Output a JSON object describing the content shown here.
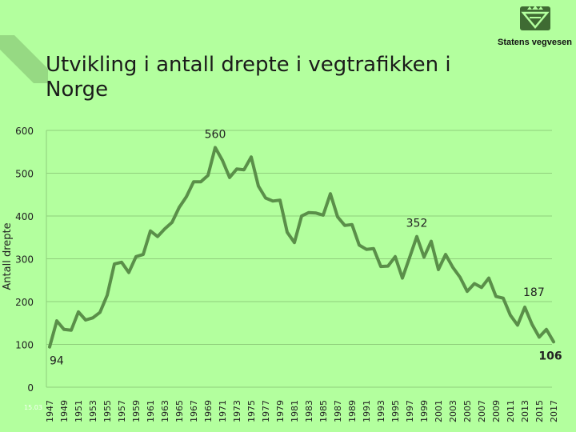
{
  "slide": {
    "title": "Utvikling i antall drepte i vegtrafikken i Norge",
    "logo_text": "Statens vegvesen",
    "footer_date": "15.03"
  },
  "colors": {
    "background": "#b3ff9e",
    "line": "#5a8f49",
    "grid": "#8fcf7c",
    "logo_fill": "#5a8f49"
  },
  "chart_data": {
    "type": "line",
    "title": "",
    "xlabel": "",
    "ylabel": "Antall drepte",
    "xlim": [
      1947,
      2017
    ],
    "ylim": [
      0,
      600
    ],
    "yticks": [
      0,
      100,
      200,
      300,
      400,
      500,
      600
    ],
    "xticks": [
      1947,
      1949,
      1951,
      1953,
      1955,
      1957,
      1959,
      1961,
      1963,
      1965,
      1967,
      1969,
      1971,
      1973,
      1975,
      1977,
      1979,
      1981,
      1983,
      1985,
      1987,
      1989,
      1991,
      1993,
      1995,
      1997,
      1999,
      2001,
      2003,
      2005,
      2007,
      2009,
      2011,
      2013,
      2015,
      2017
    ],
    "grid": true,
    "series": [
      {
        "x": [
          1947,
          1948,
          1949,
          1950,
          1951,
          1952,
          1953,
          1954,
          1955,
          1956,
          1957,
          1958,
          1959,
          1960,
          1961,
          1962,
          1963,
          1964,
          1965,
          1966,
          1967,
          1968,
          1969,
          1970,
          1971,
          1972,
          1973,
          1974,
          1975,
          1976,
          1977,
          1978,
          1979,
          1980,
          1981,
          1982,
          1983,
          1984,
          1985,
          1986,
          1987,
          1988,
          1989,
          1990,
          1991,
          1992,
          1993,
          1994,
          1995,
          1996,
          1997,
          1998,
          1999,
          2000,
          2001,
          2002,
          2003,
          2004,
          2005,
          2006,
          2007,
          2008,
          2009,
          2010,
          2011,
          2012,
          2013,
          2014,
          2015,
          2016,
          2017
        ],
        "values": [
          94,
          155,
          135,
          133,
          176,
          157,
          162,
          175,
          215,
          288,
          292,
          268,
          305,
          310,
          365,
          352,
          370,
          385,
          420,
          445,
          480,
          480,
          495,
          560,
          530,
          490,
          510,
          508,
          538,
          470,
          442,
          435,
          437,
          362,
          338,
          400,
          408,
          407,
          402,
          452,
          398,
          378,
          380,
          332,
          322,
          324,
          282,
          283,
          305,
          255,
          303,
          352,
          304,
          341,
          275,
          310,
          280,
          257,
          224,
          242,
          233,
          255,
          212,
          208,
          168,
          145,
          187,
          147,
          117,
          135,
          106
        ]
      }
    ],
    "annotations": [
      {
        "x": 1970,
        "y": 560,
        "text": "560"
      },
      {
        "x": 1998,
        "y": 352,
        "text": "352"
      },
      {
        "x": 2013,
        "y": 187,
        "text": "187"
      },
      {
        "x": 1947,
        "y": 94,
        "text": "94"
      },
      {
        "x": 2017,
        "y": 106,
        "text": "106"
      }
    ]
  }
}
